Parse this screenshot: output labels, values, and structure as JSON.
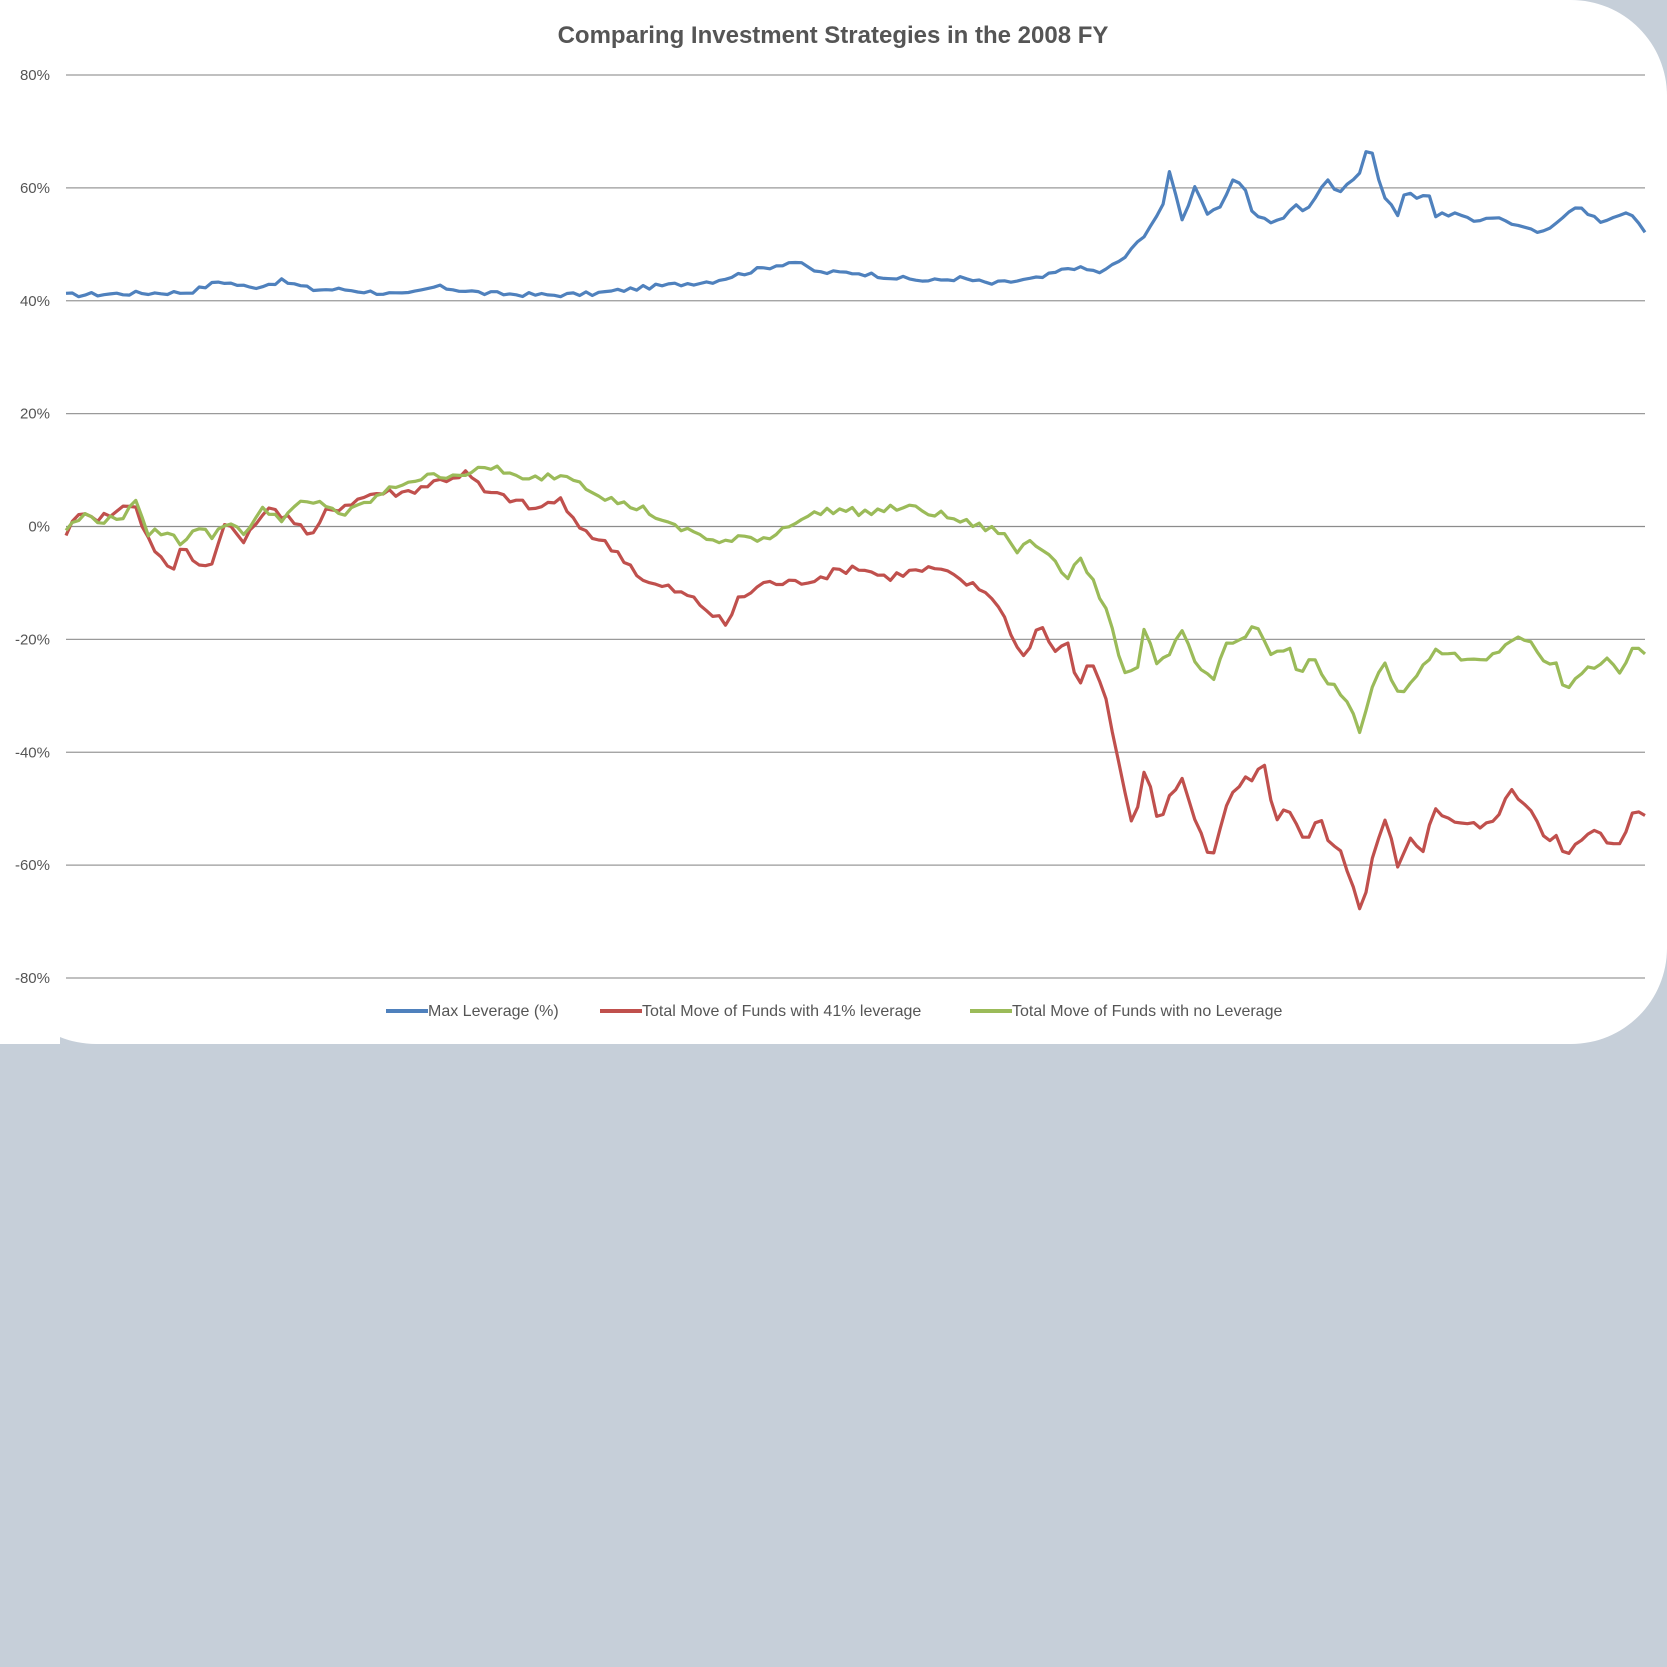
{
  "chart_data": {
    "type": "line",
    "title": "Comparing Investment Strategies in the 2008 FY",
    "xlabel": "",
    "ylabel": "",
    "ylim": [
      -80,
      80
    ],
    "yticks": [
      80,
      60,
      40,
      20,
      0,
      -20,
      -40,
      -60,
      -80
    ],
    "ytick_labels": [
      "80%",
      "60%",
      "40%",
      "20%",
      "0%",
      "-20%",
      "-40%",
      "-60%",
      "-80%"
    ],
    "grid": true,
    "legend_position": "bottom",
    "x_count": 250,
    "series": [
      {
        "name": "Max Leverage (%)",
        "color": "#4f81bd",
        "keypoints": [
          [
            0,
            41
          ],
          [
            10,
            41.3
          ],
          [
            20,
            41.5
          ],
          [
            25,
            43.5
          ],
          [
            30,
            42.3
          ],
          [
            35,
            43.5
          ],
          [
            40,
            42
          ],
          [
            45,
            42
          ],
          [
            50,
            41.5
          ],
          [
            55,
            41
          ],
          [
            60,
            42.5
          ],
          [
            68,
            41.3
          ],
          [
            78,
            41
          ],
          [
            85,
            41.2
          ],
          [
            95,
            42.5
          ],
          [
            105,
            43.5
          ],
          [
            112,
            45.5
          ],
          [
            118,
            47
          ],
          [
            122,
            45
          ],
          [
            128,
            45
          ],
          [
            135,
            44
          ],
          [
            140,
            43.5
          ],
          [
            145,
            44
          ],
          [
            150,
            43
          ],
          [
            158,
            44
          ],
          [
            163,
            46
          ],
          [
            168,
            45
          ],
          [
            172,
            48
          ],
          [
            175,
            52
          ],
          [
            178,
            57
          ],
          [
            179,
            63.5
          ],
          [
            181,
            54
          ],
          [
            183,
            60.5
          ],
          [
            185,
            55.5
          ],
          [
            187,
            56
          ],
          [
            189,
            61
          ],
          [
            191,
            61
          ],
          [
            192,
            56
          ],
          [
            195,
            54
          ],
          [
            197,
            54
          ],
          [
            199,
            57
          ],
          [
            201,
            56
          ],
          [
            205,
            62
          ],
          [
            206,
            59
          ],
          [
            208,
            61
          ],
          [
            210,
            63
          ],
          [
            211,
            67.5
          ],
          [
            212,
            66
          ],
          [
            213,
            60
          ],
          [
            216,
            55
          ],
          [
            217,
            59
          ],
          [
            219,
            58.5
          ],
          [
            221,
            59
          ],
          [
            222,
            55
          ],
          [
            225,
            55.5
          ],
          [
            228,
            54
          ],
          [
            231,
            55
          ],
          [
            234,
            54
          ],
          [
            237,
            52.5
          ],
          [
            240,
            52
          ],
          [
            243,
            55.5
          ],
          [
            245,
            57
          ],
          [
            247,
            55
          ],
          [
            249,
            54
          ],
          [
            252,
            55.5
          ],
          [
            254,
            55
          ],
          [
            256,
            52
          ]
        ]
      },
      {
        "name": "Total Move of Funds with 41% leverage",
        "color": "#c0504d",
        "keypoints": [
          [
            0,
            -1
          ],
          [
            3,
            3
          ],
          [
            5,
            1.5
          ],
          [
            8,
            2.5
          ],
          [
            11,
            4.5
          ],
          [
            13,
            -1.5
          ],
          [
            17,
            -8.5
          ],
          [
            19,
            -3
          ],
          [
            22,
            -7.5
          ],
          [
            24,
            -5.5
          ],
          [
            26,
            1
          ],
          [
            29,
            -3
          ],
          [
            32,
            3
          ],
          [
            36,
            2
          ],
          [
            40,
            -2
          ],
          [
            42,
            2.5
          ],
          [
            50,
            6
          ],
          [
            55,
            6
          ],
          [
            60,
            8
          ],
          [
            65,
            9.5
          ],
          [
            68,
            6
          ],
          [
            72,
            5
          ],
          [
            76,
            3
          ],
          [
            80,
            5
          ],
          [
            82,
            1
          ],
          [
            86,
            -2
          ],
          [
            90,
            -5
          ],
          [
            94,
            -10
          ],
          [
            98,
            -11
          ],
          [
            102,
            -13
          ],
          [
            107,
            -17.5
          ],
          [
            109,
            -13
          ],
          [
            113,
            -10
          ],
          [
            118,
            -10
          ],
          [
            122,
            -9
          ],
          [
            128,
            -7
          ],
          [
            133,
            -9
          ],
          [
            137,
            -8
          ],
          [
            141,
            -7.5
          ],
          [
            146,
            -10
          ],
          [
            150,
            -12
          ],
          [
            153,
            -18
          ],
          [
            155,
            -23.5
          ],
          [
            158,
            -17
          ],
          [
            160,
            -22
          ],
          [
            163,
            -21
          ],
          [
            164,
            -30
          ],
          [
            166,
            -23
          ],
          [
            168,
            -28
          ],
          [
            171,
            -43
          ],
          [
            173,
            -54
          ],
          [
            175,
            -42
          ],
          [
            177,
            -53
          ],
          [
            179,
            -48
          ],
          [
            181,
            -45
          ],
          [
            184,
            -55
          ],
          [
            186,
            -59
          ],
          [
            188,
            -49
          ],
          [
            191,
            -45
          ],
          [
            193,
            -44
          ],
          [
            194,
            -41
          ],
          [
            196,
            -52
          ],
          [
            198,
            -49
          ],
          [
            201,
            -57
          ],
          [
            203,
            -51
          ],
          [
            205,
            -57
          ],
          [
            207,
            -58
          ],
          [
            209,
            -65
          ],
          [
            210,
            -69.5
          ],
          [
            212,
            -58
          ],
          [
            214,
            -52
          ],
          [
            216,
            -61
          ],
          [
            218,
            -55
          ],
          [
            220,
            -57
          ],
          [
            222,
            -50
          ],
          [
            225,
            -52
          ],
          [
            228,
            -53
          ],
          [
            231,
            -53
          ],
          [
            234,
            -47
          ],
          [
            237,
            -49
          ],
          [
            240,
            -55
          ],
          [
            242,
            -55
          ],
          [
            243,
            -59.5
          ],
          [
            245,
            -56
          ],
          [
            248,
            -54
          ],
          [
            250,
            -56
          ],
          [
            252,
            -55.5
          ],
          [
            254,
            -51
          ],
          [
            256,
            -51
          ]
        ]
      },
      {
        "name": "Total Move of Funds with no Leverage",
        "color": "#9bbb59",
        "keypoints": [
          [
            0,
            -0.5
          ],
          [
            3,
            2
          ],
          [
            6,
            1
          ],
          [
            9,
            1.5
          ],
          [
            11,
            5
          ],
          [
            13,
            -1
          ],
          [
            16,
            -1
          ],
          [
            19,
            -3
          ],
          [
            21,
            0.5
          ],
          [
            24,
            -2
          ],
          [
            26,
            1
          ],
          [
            29,
            -1
          ],
          [
            32,
            3
          ],
          [
            35,
            1.5
          ],
          [
            38,
            4
          ],
          [
            42,
            4
          ],
          [
            45,
            2
          ],
          [
            50,
            5
          ],
          [
            55,
            8
          ],
          [
            60,
            9
          ],
          [
            65,
            9.5
          ],
          [
            70,
            10.5
          ],
          [
            74,
            8
          ],
          [
            78,
            9
          ],
          [
            82,
            9
          ],
          [
            86,
            6
          ],
          [
            90,
            4
          ],
          [
            94,
            3
          ],
          [
            98,
            0
          ],
          [
            102,
            -1
          ],
          [
            106,
            -3
          ],
          [
            110,
            -2
          ],
          [
            114,
            -2
          ],
          [
            118,
            1
          ],
          [
            124,
            3
          ],
          [
            130,
            2.5
          ],
          [
            136,
            3.5
          ],
          [
            142,
            2
          ],
          [
            148,
            0
          ],
          [
            152,
            -1
          ],
          [
            154,
            -5
          ],
          [
            156,
            -2
          ],
          [
            158,
            -4
          ],
          [
            160,
            -4.5
          ],
          [
            162,
            -10
          ],
          [
            164,
            -5
          ],
          [
            166,
            -9
          ],
          [
            168,
            -13
          ],
          [
            170,
            -20
          ],
          [
            172,
            -26.5
          ],
          [
            174,
            -24
          ],
          [
            175,
            -17
          ],
          [
            177,
            -25
          ],
          [
            179,
            -22
          ],
          [
            181,
            -19
          ],
          [
            183,
            -24
          ],
          [
            186,
            -28
          ],
          [
            188,
            -21
          ],
          [
            191,
            -20
          ],
          [
            193,
            -16.5
          ],
          [
            195,
            -23
          ],
          [
            198,
            -21
          ],
          [
            200,
            -27
          ],
          [
            202,
            -22
          ],
          [
            204,
            -28
          ],
          [
            206,
            -28.5
          ],
          [
            208,
            -32
          ],
          [
            210,
            -37
          ],
          [
            212,
            -27
          ],
          [
            214,
            -24
          ],
          [
            216,
            -30
          ],
          [
            218,
            -27
          ],
          [
            220,
            -25
          ],
          [
            222,
            -22
          ],
          [
            225,
            -23
          ],
          [
            228,
            -23
          ],
          [
            231,
            -23.5
          ],
          [
            234,
            -20.5
          ],
          [
            237,
            -20
          ],
          [
            240,
            -24
          ],
          [
            242,
            -25
          ],
          [
            243,
            -29.5
          ],
          [
            245,
            -26
          ],
          [
            248,
            -25
          ],
          [
            250,
            -23
          ],
          [
            252,
            -25.5
          ],
          [
            254,
            -22
          ],
          [
            256,
            -22
          ]
        ]
      }
    ]
  }
}
